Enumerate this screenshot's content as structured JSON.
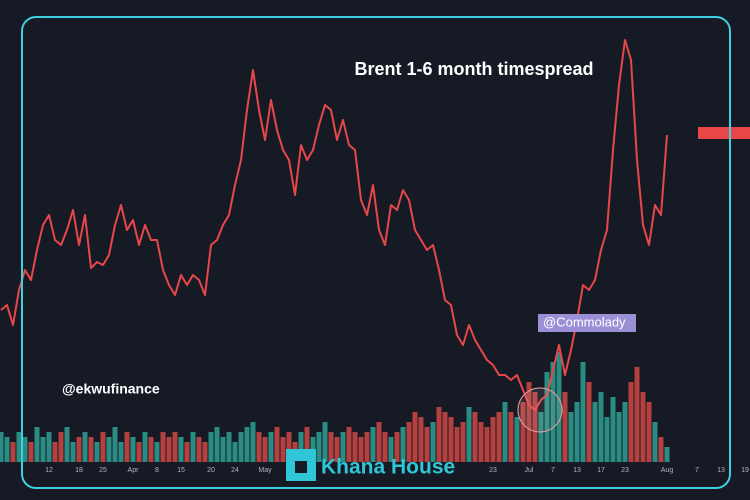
{
  "chart_data": {
    "type": "line",
    "title": "Brent 1-6 month timespread",
    "annotations": [
      "@ekwufinance",
      "@Commolady"
    ],
    "watermark": "Khana House",
    "categories": [
      null,
      null,
      null,
      null,
      null,
      null,
      null,
      null,
      "12",
      null,
      null,
      null,
      null,
      "18",
      null,
      null,
      null,
      "25",
      null,
      null,
      null,
      null,
      "Apr",
      null,
      null,
      null,
      "8",
      null,
      null,
      null,
      "15",
      null,
      null,
      null,
      null,
      "20",
      null,
      null,
      null,
      "24",
      null,
      null,
      null,
      null,
      "May",
      null,
      null,
      null,
      null,
      null,
      null,
      null,
      null,
      null,
      null,
      null,
      null,
      null,
      null,
      null,
      null,
      null,
      null,
      null,
      null,
      null,
      null,
      null,
      null,
      null,
      null,
      null,
      null,
      null,
      null,
      null,
      null,
      null,
      null,
      null,
      null,
      null,
      "23",
      null,
      null,
      null,
      null,
      null,
      "Jul",
      null,
      null,
      null,
      "7",
      null,
      null,
      null,
      "13",
      null,
      null,
      null,
      "17",
      null,
      null,
      null,
      "23",
      null,
      null,
      null,
      null,
      null,
      null,
      "Aug",
      null,
      null,
      null,
      null,
      "7",
      null,
      null,
      null,
      "13",
      null,
      null,
      null,
      "19"
    ],
    "series": [
      {
        "color": "#e8474a",
        "values": [
          17,
          17.5,
          15.5,
          19,
          21,
          20,
          23,
          25.5,
          26.5,
          24,
          23.5,
          25,
          27,
          23.5,
          26.5,
          21.2,
          21.8,
          21.5,
          22.5,
          25.5,
          27.5,
          25,
          26,
          23.5,
          25.5,
          24,
          24,
          21,
          19.5,
          18.5,
          20.5,
          19.5,
          20.5,
          20,
          18.5,
          23.5,
          24,
          25.5,
          26.5,
          29.5,
          32,
          37,
          41,
          37,
          34,
          38,
          35,
          33,
          32,
          28.5,
          33.5,
          32,
          33,
          35.5,
          37.5,
          37,
          34,
          36,
          33.5,
          33,
          28,
          26.5,
          29.5,
          25,
          23.5,
          27.5,
          27,
          29,
          28,
          25,
          24,
          23,
          23.5,
          21,
          18,
          17.5,
          14.5,
          13.5,
          15.5,
          14,
          13,
          12,
          11.5,
          10.5,
          10.5,
          10,
          10.5,
          9,
          7.5,
          7,
          8,
          8.5,
          11,
          13.5,
          10.5,
          13,
          16,
          19.5,
          19,
          20,
          23,
          25,
          33,
          39.5,
          44,
          42,
          32,
          25.5,
          23.5,
          27.5,
          26.5,
          34.5,
          null,
          null,
          null,
          null,
          null,
          null,
          null,
          null,
          null,
          null,
          null,
          null,
          null
        ]
      }
    ],
    "ylim": [
      0,
      46
    ],
    "volume": {
      "up_color": "#2b8c83",
      "down_color": "#b4403f",
      "ylim": [
        0,
        12
      ],
      "values": [
        3,
        2.5,
        2,
        3,
        2.5,
        2,
        3.5,
        2.5,
        3,
        2,
        3,
        3.5,
        2,
        2.5,
        3,
        2.5,
        2,
        3,
        2.5,
        3.5,
        2,
        3,
        2.5,
        2,
        3,
        2.5,
        2,
        3,
        2.5,
        3,
        2.5,
        2,
        3,
        2.5,
        2,
        3,
        3.5,
        2.5,
        3,
        2,
        3,
        3.5,
        4,
        3,
        2.5,
        3,
        3.5,
        2.5,
        3,
        2,
        3,
        3.5,
        2.5,
        3,
        4,
        3,
        2.5,
        3,
        3.5,
        3,
        2.5,
        3,
        3.5,
        4,
        3,
        2.5,
        3,
        3.5,
        4,
        5,
        4.5,
        3.5,
        4,
        5.5,
        5,
        4.5,
        3.5,
        4,
        5.5,
        5,
        4,
        3.5,
        4.5,
        5,
        6,
        5,
        4.5,
        6,
        8,
        7,
        5,
        9,
        10,
        11,
        7,
        5,
        6,
        10,
        8,
        6,
        7,
        4.5,
        6.5,
        5,
        6,
        8,
        9.5,
        7,
        6,
        4,
        2.5,
        1.5
      ]
    }
  }
}
